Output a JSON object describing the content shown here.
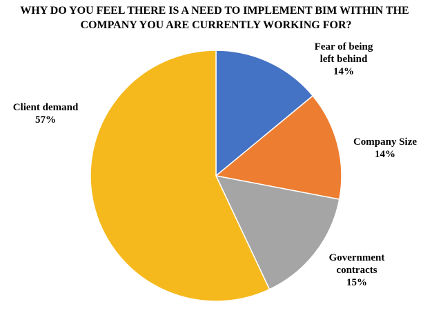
{
  "chart_data": {
    "type": "pie",
    "title": [
      "WHY DO YOU FEEL THERE IS A NEED TO IMPLEMENT BIM WITHIN THE",
      "COMPANY YOU ARE CURRENTLY WORKING FOR?"
    ],
    "slices": [
      {
        "category": [
          "Fear of being",
          "left behind"
        ],
        "value": 14,
        "value_label": "14%",
        "color": "#4472C4"
      },
      {
        "category": [
          "Company Size"
        ],
        "value": 14,
        "value_label": "14%",
        "color": "#ED7D31"
      },
      {
        "category": [
          "Government",
          "contracts"
        ],
        "value": 15,
        "value_label": "15%",
        "color": "#A5A5A5"
      },
      {
        "category": [
          "Client demand"
        ],
        "value": 57,
        "value_label": "57%",
        "color": "#F5B91E"
      }
    ],
    "start": "12 o'clock",
    "direction": "clockwise",
    "legend": "none",
    "data_labels": "outside"
  }
}
